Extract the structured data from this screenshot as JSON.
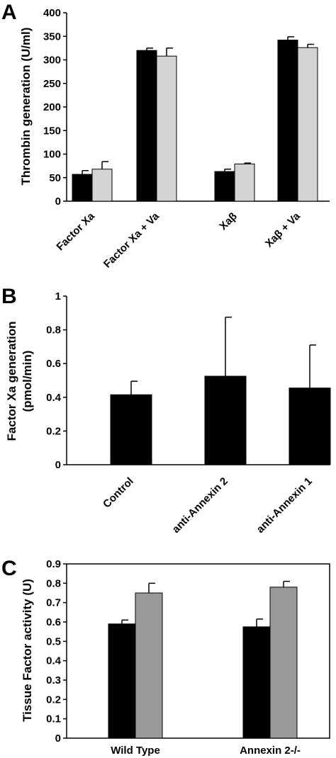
{
  "chart_data": [
    {
      "panel": "A",
      "type": "bar",
      "ylabel": "Thrombin generation (U/ml)",
      "ylim": [
        0,
        400
      ],
      "yticks": [
        0,
        50,
        100,
        150,
        200,
        250,
        300,
        350,
        400
      ],
      "frame": false,
      "categories": [
        "Factor Xa",
        "Factor Xa + Va",
        "Xaβ",
        "Xaβ + Va"
      ],
      "series": [
        {
          "color": "#000000",
          "values": [
            57,
            320,
            63,
            342
          ],
          "errors": [
            8,
            5,
            5,
            7
          ]
        },
        {
          "color": "#d3d3d3",
          "values": [
            68,
            308,
            79,
            326
          ],
          "errors": [
            16,
            17,
            2,
            7
          ]
        }
      ]
    },
    {
      "panel": "B",
      "type": "bar",
      "ylabel": "Factor Xa generation (pmol/min)",
      "ylabel_lines": [
        "Factor Xa generation",
        "(pmol/min)"
      ],
      "ylim": [
        0,
        1
      ],
      "yticks": [
        "0",
        "0.2",
        "0.4",
        "0.6",
        "0.8",
        "1"
      ],
      "frame": false,
      "categories": [
        "Control",
        "anti-Annexin 2",
        "anti-Annexin 1"
      ],
      "series": [
        {
          "color": "#000000",
          "values": [
            0.415,
            0.525,
            0.455
          ],
          "errors": [
            0.08,
            0.35,
            0.255
          ]
        }
      ]
    },
    {
      "panel": "C",
      "type": "bar",
      "ylabel": "Tissue Factor activity (U)",
      "ylim": [
        0,
        0.9
      ],
      "yticks": [
        "0",
        "0.1",
        "0.2",
        "0.3",
        "0.4",
        "0.5",
        "0.6",
        "0.7",
        "0.8",
        "0.9"
      ],
      "frame": true,
      "categories": [
        "Wild Type",
        "Annexin 2-/-"
      ],
      "series": [
        {
          "color": "#000000",
          "values": [
            0.59,
            0.575
          ],
          "errors": [
            0.02,
            0.04
          ]
        },
        {
          "color": "#999999",
          "values": [
            0.75,
            0.78
          ],
          "errors": [
            0.05,
            0.03
          ]
        }
      ]
    }
  ]
}
